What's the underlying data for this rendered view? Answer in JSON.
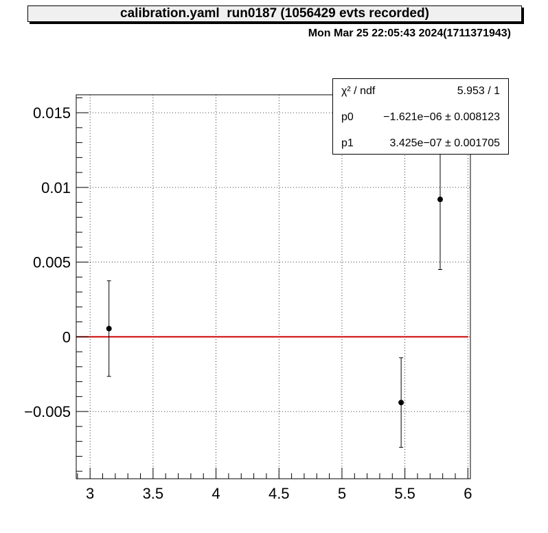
{
  "title": "calibration.yaml  run0187 (1056429 evts recorded)",
  "datestamp": "Mon Mar 25 22:05:43 2024(1711371943)",
  "stats": [
    {
      "name": "χ² / ndf",
      "value": "5.953 / 1"
    },
    {
      "name": "p0",
      "value": "−1.621e−06 ± 0.008123"
    },
    {
      "name": "p1",
      "value": "3.425e−07 ± 0.001705"
    }
  ],
  "chart_data": {
    "type": "scatter",
    "title": "calibration.yaml  run0187 (1056429 evts recorded)",
    "xlabel": "",
    "ylabel": "",
    "xlim": [
      2.89,
      6.02
    ],
    "ylim": [
      -0.0095,
      0.0162
    ],
    "grid": true,
    "x_ticks": [
      3,
      3.5,
      4,
      4.5,
      5,
      5.5,
      6
    ],
    "x_tick_labels": [
      "3",
      "3.5",
      "4",
      "4.5",
      "5",
      "5.5",
      "6"
    ],
    "y_ticks": [
      -0.005,
      0,
      0.005,
      0.01,
      0.015
    ],
    "y_tick_labels": [
      "−0.005",
      "0",
      "0.005",
      "0.01",
      "0.015"
    ],
    "points": [
      {
        "x": 3.15,
        "y": 0.00055,
        "yerr": 0.0032
      },
      {
        "x": 5.47,
        "y": -0.0044,
        "yerr": 0.003
      },
      {
        "x": 5.78,
        "y": 0.0092,
        "yerr": 0.0047
      }
    ],
    "fit": {
      "p0": -1.621e-06,
      "p1": 3.425e-07,
      "color": "#cc0000"
    },
    "marker_color": "#000000"
  }
}
